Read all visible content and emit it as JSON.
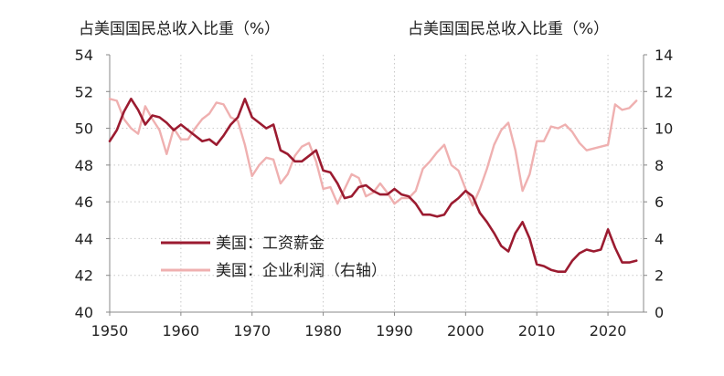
{
  "chart_data": {
    "type": "line",
    "left_axis_title": "占美国国民总收入比重（%）",
    "right_axis_title": "占美国国民总收入比重（%）",
    "x_ticks": [
      "1950",
      "1960",
      "1970",
      "1980",
      "1990",
      "2000",
      "2010",
      "2020"
    ],
    "y_left_ticks": [
      "40",
      "42",
      "44",
      "46",
      "48",
      "50",
      "52",
      "54"
    ],
    "y_right_ticks": [
      "0",
      "2",
      "4",
      "6",
      "8",
      "10",
      "12",
      "14"
    ],
    "xlim": [
      1950,
      2025
    ],
    "ylim_left": [
      40,
      54
    ],
    "ylim_right": [
      0,
      14
    ],
    "grid": true,
    "legend_position": "lower-left",
    "colors": {
      "wages": "#9b1b30",
      "profits": "#efb0b0",
      "axis": "#888888",
      "grid": "#c8c8c8",
      "text": "#222222"
    },
    "series": [
      {
        "name": "美国：工资薪金",
        "axis": "left",
        "x": [
          1950,
          1951,
          1952,
          1953,
          1954,
          1955,
          1956,
          1957,
          1958,
          1959,
          1960,
          1961,
          1962,
          1963,
          1964,
          1965,
          1966,
          1967,
          1968,
          1969,
          1970,
          1971,
          1972,
          1973,
          1974,
          1975,
          1976,
          1977,
          1978,
          1979,
          1980,
          1981,
          1982,
          1983,
          1984,
          1985,
          1986,
          1987,
          1988,
          1989,
          1990,
          1991,
          1992,
          1993,
          1994,
          1995,
          1996,
          1997,
          1998,
          1999,
          2000,
          2001,
          2002,
          2003,
          2004,
          2005,
          2006,
          2007,
          2008,
          2009,
          2010,
          2011,
          2012,
          2013,
          2014,
          2015,
          2016,
          2017,
          2018,
          2019,
          2020,
          2021,
          2022,
          2023,
          2024
        ],
        "values": [
          49.3,
          49.9,
          50.9,
          51.6,
          51.0,
          50.2,
          50.7,
          50.6,
          50.3,
          49.9,
          50.2,
          49.9,
          49.6,
          49.3,
          49.4,
          49.1,
          49.6,
          50.2,
          50.6,
          51.6,
          50.6,
          50.3,
          50.0,
          50.2,
          48.8,
          48.6,
          48.2,
          48.2,
          48.5,
          48.8,
          47.7,
          47.6,
          47.0,
          46.2,
          46.3,
          46.8,
          46.9,
          46.6,
          46.4,
          46.4,
          46.7,
          46.4,
          46.3,
          45.9,
          45.3,
          45.3,
          45.2,
          45.3,
          45.9,
          46.2,
          46.6,
          46.3,
          45.4,
          44.9,
          44.3,
          43.6,
          43.3,
          44.3,
          44.9,
          44.0,
          42.6,
          42.5,
          42.3,
          42.2,
          42.2,
          42.8,
          43.2,
          43.4,
          43.3,
          43.4,
          44.5,
          43.5,
          42.7,
          42.7,
          42.8
        ]
      },
      {
        "name": "美国：企业利润（右轴）",
        "axis": "right",
        "x": [
          1950,
          1951,
          1952,
          1953,
          1954,
          1955,
          1956,
          1957,
          1958,
          1959,
          1960,
          1961,
          1962,
          1963,
          1964,
          1965,
          1966,
          1967,
          1968,
          1969,
          1970,
          1971,
          1972,
          1973,
          1974,
          1975,
          1976,
          1977,
          1978,
          1979,
          1980,
          1981,
          1982,
          1983,
          1984,
          1985,
          1986,
          1987,
          1988,
          1989,
          1990,
          1991,
          1992,
          1993,
          1994,
          1995,
          1996,
          1997,
          1998,
          1999,
          2000,
          2001,
          2002,
          2003,
          2004,
          2005,
          2006,
          2007,
          2008,
          2009,
          2010,
          2011,
          2012,
          2013,
          2014,
          2015,
          2016,
          2017,
          2018,
          2019,
          2020,
          2021,
          2022,
          2023,
          2024
        ],
        "values": [
          11.6,
          11.5,
          10.5,
          10.0,
          9.7,
          11.2,
          10.5,
          9.9,
          8.6,
          10.0,
          9.4,
          9.4,
          10.0,
          10.5,
          10.8,
          11.4,
          11.3,
          10.6,
          10.4,
          9.1,
          7.4,
          8.0,
          8.4,
          8.3,
          7.0,
          7.5,
          8.5,
          9.0,
          9.2,
          8.2,
          6.7,
          6.8,
          5.9,
          6.7,
          7.5,
          7.3,
          6.3,
          6.5,
          7.0,
          6.5,
          5.9,
          6.2,
          6.2,
          6.6,
          7.8,
          8.2,
          8.7,
          9.1,
          8.0,
          7.7,
          6.7,
          5.8,
          6.7,
          7.8,
          9.1,
          9.9,
          10.3,
          8.8,
          6.6,
          7.5,
          9.3,
          9.3,
          10.1,
          10.0,
          10.2,
          9.8,
          9.2,
          8.8,
          8.9,
          9.0,
          9.1,
          11.3,
          11.0,
          11.1,
          11.5
        ]
      }
    ]
  }
}
